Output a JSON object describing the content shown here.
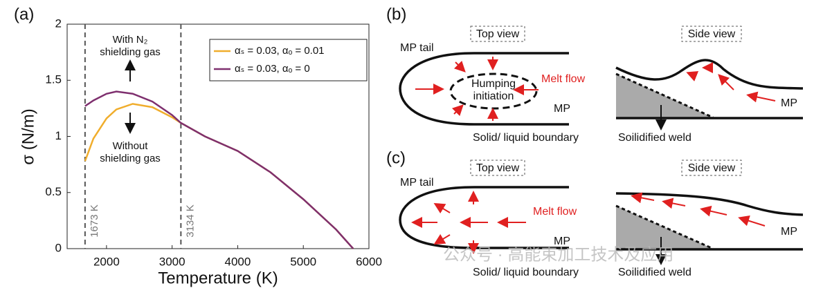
{
  "chart_data": {
    "type": "line",
    "panel_label": "(a)",
    "x_label": "Temperature (K)",
    "y_label": "σ (N/m)",
    "x": [
      1673,
      1800,
      2000,
      2150,
      2400,
      2700,
      3000,
      3134,
      3500,
      4000,
      4500,
      5000,
      5500,
      5760
    ],
    "series": [
      {
        "name": "αₛ = 0.03, αₒ = 0.01",
        "color": "#f0ad2c",
        "values": [
          0.78,
          0.98,
          1.16,
          1.24,
          1.29,
          1.26,
          1.17,
          1.12,
          1.0,
          0.87,
          0.68,
          0.44,
          0.17,
          0
        ]
      },
      {
        "name": "αₛ = 0.03, αₒ = 0",
        "color": "#7e2f6e",
        "values": [
          1.27,
          1.32,
          1.38,
          1.4,
          1.38,
          1.31,
          1.19,
          1.12,
          1.0,
          0.87,
          0.68,
          0.44,
          0.17,
          0
        ]
      }
    ],
    "xlim": [
      1400,
      6000
    ],
    "xticks": [
      2000,
      3000,
      4000,
      5000,
      6000
    ],
    "ylim": [
      0,
      2
    ],
    "yticks": [
      0,
      0.5,
      1,
      1.5,
      2
    ],
    "vlines": [
      {
        "value": 1673,
        "label": "1673 K"
      },
      {
        "value": 3134,
        "label": "3134 K"
      }
    ],
    "annotations": {
      "with": [
        "With N₂",
        "shielding gas"
      ],
      "without": [
        "Without",
        "shielding gas"
      ]
    },
    "legend_position": "upper right"
  },
  "panel_b": {
    "label": "(b)",
    "top_view": "Top view",
    "side_view": "Side view",
    "mp_tail": "MP tail",
    "humping": [
      "Humping",
      "initiation"
    ],
    "melt_flow": "Melt flow",
    "mp_top": "MP",
    "boundary": "Solid/ liquid boundary",
    "mp_side": "MP",
    "weld": "Soilidified weld"
  },
  "panel_c": {
    "label": "(c)",
    "top_view": "Top view",
    "side_view": "Side view",
    "mp_tail": "MP tail",
    "melt_flow": "Melt flow",
    "mp_top": "MP",
    "boundary": "Solid/ liquid boundary",
    "mp_side": "MP",
    "weld": "Soilidified weld"
  },
  "watermark": "公众号 · 高能束加工技术及应用"
}
